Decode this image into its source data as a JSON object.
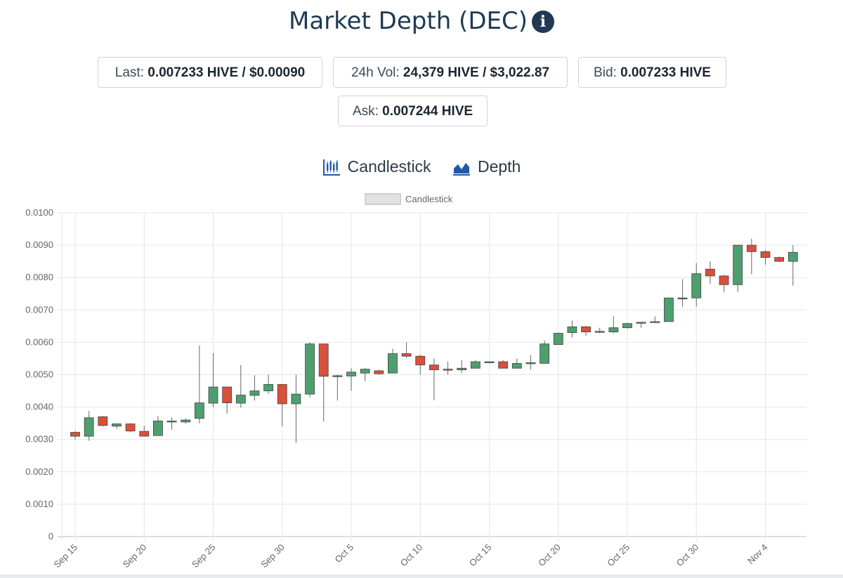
{
  "header": {
    "title": "Market Depth (DEC)",
    "info_icon": "info-circle-icon"
  },
  "stats": {
    "last_label": "Last:",
    "last_value": "0.007233 HIVE / $0.00090",
    "vol_label": "24h Vol:",
    "vol_value": "24,379 HIVE / $3,022.87",
    "bid_label": "Bid:",
    "bid_value": "0.007233 HIVE",
    "ask_label": "Ask:",
    "ask_value": "0.007244 HIVE"
  },
  "tabs": {
    "candlestick": "Candlestick",
    "depth": "Depth",
    "candlestick_icon": "candlestick-chart-icon",
    "depth_icon": "area-chart-icon"
  },
  "colors": {
    "up": "#4e9f6e",
    "down": "#d9503b",
    "grid": "#e6e6e6",
    "title": "#1f3a52"
  },
  "chart_data": {
    "type": "candlestick",
    "legend": "Candlestick",
    "legend_position": "top",
    "grid": true,
    "ylim": [
      0,
      0.01
    ],
    "y_ticks": [
      "0",
      "0.0010",
      "0.0020",
      "0.0030",
      "0.0040",
      "0.0050",
      "0.0060",
      "0.0070",
      "0.0080",
      "0.0090",
      "0.0100"
    ],
    "x_ticks": [
      "Sep 15",
      "Sep 20",
      "Sep 25",
      "Sep 30",
      "Oct 5",
      "Oct 10",
      "Oct 15",
      "Oct 20",
      "Oct 25",
      "Oct 30",
      "Nov 4"
    ],
    "candles": [
      {
        "date": "Sep 15",
        "open": 0.00322,
        "high": 0.00325,
        "low": 0.003,
        "close": 0.0031
      },
      {
        "date": "Sep 16",
        "open": 0.0031,
        "high": 0.00388,
        "low": 0.00296,
        "close": 0.00367
      },
      {
        "date": "Sep 17",
        "open": 0.0037,
        "high": 0.00372,
        "low": 0.0034,
        "close": 0.00343
      },
      {
        "date": "Sep 18",
        "open": 0.00341,
        "high": 0.0035,
        "low": 0.00333,
        "close": 0.00348
      },
      {
        "date": "Sep 19",
        "open": 0.00348,
        "high": 0.0035,
        "low": 0.00322,
        "close": 0.00326
      },
      {
        "date": "Sep 20",
        "open": 0.00325,
        "high": 0.00342,
        "low": 0.0031,
        "close": 0.0031
      },
      {
        "date": "Sep 21",
        "open": 0.00312,
        "high": 0.00372,
        "low": 0.00311,
        "close": 0.00357
      },
      {
        "date": "Sep 22",
        "open": 0.00357,
        "high": 0.00368,
        "low": 0.0033,
        "close": 0.00357
      },
      {
        "date": "Sep 23",
        "open": 0.00354,
        "high": 0.00365,
        "low": 0.00348,
        "close": 0.0036
      },
      {
        "date": "Sep 24",
        "open": 0.00365,
        "high": 0.0059,
        "low": 0.0035,
        "close": 0.00413
      },
      {
        "date": "Sep 25",
        "open": 0.00412,
        "high": 0.00567,
        "low": 0.004,
        "close": 0.00462
      },
      {
        "date": "Sep 26",
        "open": 0.00462,
        "high": 0.00462,
        "low": 0.0038,
        "close": 0.00413
      },
      {
        "date": "Sep 27",
        "open": 0.00412,
        "high": 0.0053,
        "low": 0.00398,
        "close": 0.00437
      },
      {
        "date": "Sep 28",
        "open": 0.00436,
        "high": 0.00498,
        "low": 0.0042,
        "close": 0.0045
      },
      {
        "date": "Sep 29",
        "open": 0.0045,
        "high": 0.005,
        "low": 0.0044,
        "close": 0.0047
      },
      {
        "date": "Sep 30",
        "open": 0.0047,
        "high": 0.0047,
        "low": 0.0034,
        "close": 0.0041
      },
      {
        "date": "Oct 1",
        "open": 0.0041,
        "high": 0.005,
        "low": 0.00289,
        "close": 0.0044
      },
      {
        "date": "Oct 2",
        "open": 0.0044,
        "high": 0.006,
        "low": 0.0043,
        "close": 0.00595
      },
      {
        "date": "Oct 3",
        "open": 0.00595,
        "high": 0.00595,
        "low": 0.00355,
        "close": 0.00495
      },
      {
        "date": "Oct 4",
        "open": 0.00495,
        "high": 0.005,
        "low": 0.0042,
        "close": 0.00497
      },
      {
        "date": "Oct 5",
        "open": 0.00496,
        "high": 0.0052,
        "low": 0.0045,
        "close": 0.00508
      },
      {
        "date": "Oct 6",
        "open": 0.00505,
        "high": 0.0052,
        "low": 0.0048,
        "close": 0.00517
      },
      {
        "date": "Oct 7",
        "open": 0.00512,
        "high": 0.00515,
        "low": 0.005,
        "close": 0.00503
      },
      {
        "date": "Oct 8",
        "open": 0.00505,
        "high": 0.0058,
        "low": 0.00505,
        "close": 0.00565
      },
      {
        "date": "Oct 9",
        "open": 0.00565,
        "high": 0.006,
        "low": 0.00552,
        "close": 0.00557
      },
      {
        "date": "Oct 10",
        "open": 0.00557,
        "high": 0.00562,
        "low": 0.005,
        "close": 0.0053
      },
      {
        "date": "Oct 11",
        "open": 0.0053,
        "high": 0.0055,
        "low": 0.00421,
        "close": 0.00515
      },
      {
        "date": "Oct 12",
        "open": 0.00517,
        "high": 0.0054,
        "low": 0.005,
        "close": 0.00515
      },
      {
        "date": "Oct 13",
        "open": 0.00515,
        "high": 0.00545,
        "low": 0.00505,
        "close": 0.0052
      },
      {
        "date": "Oct 14",
        "open": 0.0052,
        "high": 0.00545,
        "low": 0.0052,
        "close": 0.0054
      },
      {
        "date": "Oct 15",
        "open": 0.0054,
        "high": 0.0054,
        "low": 0.0054,
        "close": 0.0054
      },
      {
        "date": "Oct 16",
        "open": 0.0054,
        "high": 0.00545,
        "low": 0.0052,
        "close": 0.0052
      },
      {
        "date": "Oct 17",
        "open": 0.0052,
        "high": 0.0055,
        "low": 0.0052,
        "close": 0.00535
      },
      {
        "date": "Oct 18",
        "open": 0.00535,
        "high": 0.0056,
        "low": 0.00515,
        "close": 0.00537
      },
      {
        "date": "Oct 19",
        "open": 0.00535,
        "high": 0.00605,
        "low": 0.00535,
        "close": 0.00595
      },
      {
        "date": "Oct 20",
        "open": 0.00593,
        "high": 0.0063,
        "low": 0.00593,
        "close": 0.00628
      },
      {
        "date": "Oct 21",
        "open": 0.0063,
        "high": 0.00667,
        "low": 0.00615,
        "close": 0.00648
      },
      {
        "date": "Oct 22",
        "open": 0.00648,
        "high": 0.0065,
        "low": 0.0062,
        "close": 0.00632
      },
      {
        "date": "Oct 23",
        "open": 0.00634,
        "high": 0.00645,
        "low": 0.00628,
        "close": 0.00634
      },
      {
        "date": "Oct 24",
        "open": 0.00632,
        "high": 0.0068,
        "low": 0.00628,
        "close": 0.00645
      },
      {
        "date": "Oct 25",
        "open": 0.00645,
        "high": 0.0066,
        "low": 0.00642,
        "close": 0.00658
      },
      {
        "date": "Oct 26",
        "open": 0.0066,
        "high": 0.00663,
        "low": 0.00645,
        "close": 0.00662
      },
      {
        "date": "Oct 27",
        "open": 0.00662,
        "high": 0.0068,
        "low": 0.0066,
        "close": 0.00664
      },
      {
        "date": "Oct 28",
        "open": 0.00664,
        "high": 0.00738,
        "low": 0.00664,
        "close": 0.00737
      },
      {
        "date": "Oct 29",
        "open": 0.00737,
        "high": 0.00795,
        "low": 0.0071,
        "close": 0.00737
      },
      {
        "date": "Oct 30",
        "open": 0.00737,
        "high": 0.00845,
        "low": 0.0071,
        "close": 0.00812
      },
      {
        "date": "Oct 31",
        "open": 0.00826,
        "high": 0.0085,
        "low": 0.0078,
        "close": 0.00805
      },
      {
        "date": "Nov 1",
        "open": 0.00805,
        "high": 0.00808,
        "low": 0.00755,
        "close": 0.00778
      },
      {
        "date": "Nov 2",
        "open": 0.00778,
        "high": 0.009,
        "low": 0.00755,
        "close": 0.009
      },
      {
        "date": "Nov 3",
        "open": 0.009,
        "high": 0.0092,
        "low": 0.0081,
        "close": 0.0088
      },
      {
        "date": "Nov 4",
        "open": 0.0088,
        "high": 0.00885,
        "low": 0.0084,
        "close": 0.00862
      },
      {
        "date": "Nov 5",
        "open": 0.00862,
        "high": 0.00865,
        "low": 0.00848,
        "close": 0.0085
      },
      {
        "date": "Nov 6",
        "open": 0.0085,
        "high": 0.009,
        "low": 0.00775,
        "close": 0.00878
      }
    ]
  }
}
